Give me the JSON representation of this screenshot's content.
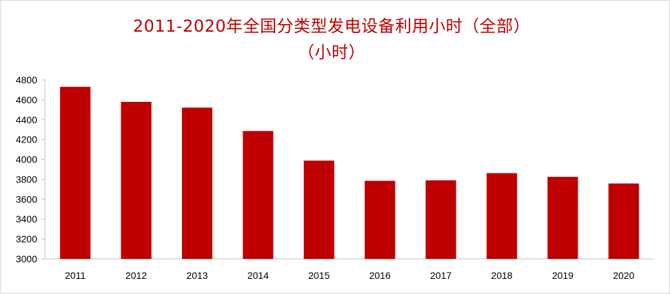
{
  "chart_data": {
    "type": "bar",
    "title": "2011-2020年全国分类型发电设备利用小时（全部）",
    "subtitle": "（小时）",
    "categories": [
      "2011",
      "2012",
      "2013",
      "2014",
      "2015",
      "2016",
      "2017",
      "2018",
      "2019",
      "2020"
    ],
    "values": [
      4730,
      4579,
      4521,
      4286,
      3988,
      3785,
      3790,
      3862,
      3825,
      3758
    ],
    "ylim": [
      3000,
      4800
    ],
    "yticks": [
      "3000",
      "3200",
      "3400",
      "3600",
      "3800",
      "4000",
      "4200",
      "4400",
      "4600",
      "4800"
    ],
    "grid": false,
    "legend": "none",
    "bar_color": "#c00000",
    "title_color": "#c00000"
  }
}
